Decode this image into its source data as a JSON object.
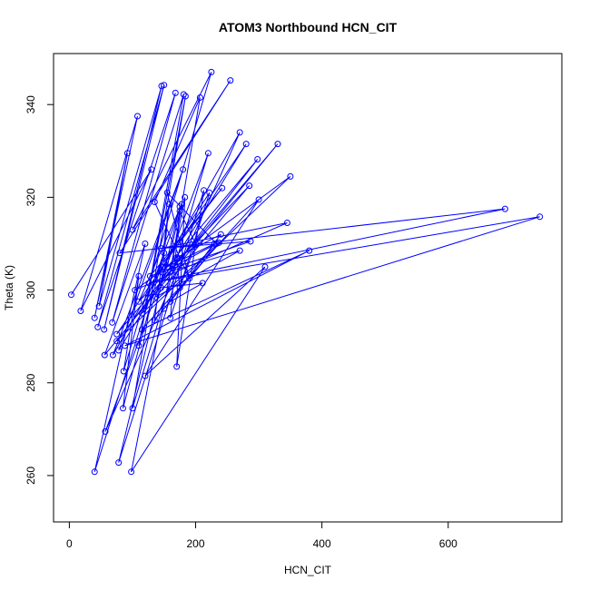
{
  "chart_data": {
    "type": "scatter",
    "mode": "lines+markers",
    "title": "ATOM3 Northbound HCN_CIT",
    "xlabel": "HCN_CIT",
    "ylabel": "Theta (K)",
    "xlim": [
      -25,
      780
    ],
    "ylim": [
      250,
      351
    ],
    "xticks": [
      0,
      200,
      400,
      600
    ],
    "yticks": [
      260,
      280,
      300,
      320,
      340
    ],
    "grid": false,
    "color": "#0000ff",
    "marker": "open-circle",
    "series": [
      {
        "points": [
          [
            3,
            299
          ],
          [
            130,
            326
          ],
          [
            18,
            295.5
          ],
          [
            108,
            337.5
          ],
          [
            40,
            294
          ],
          [
            92,
            329.5
          ],
          [
            47,
            296.5
          ],
          [
            146,
            344
          ],
          [
            55,
            291.5
          ],
          [
            150,
            344.2
          ],
          [
            45,
            292
          ],
          [
            168,
            342.5
          ],
          [
            68,
            293
          ],
          [
            181,
            342.2
          ],
          [
            110,
            288
          ],
          [
            184,
            341.8
          ],
          [
            100,
            274.5
          ],
          [
            220,
            329.5
          ],
          [
            57,
            269.5
          ],
          [
            270,
            334
          ],
          [
            69,
            286
          ],
          [
            180,
            326
          ],
          [
            78,
            287
          ],
          [
            280,
            331.5
          ],
          [
            75,
            290.5
          ],
          [
            330,
            331.5
          ],
          [
            56,
            286
          ],
          [
            120,
            310
          ],
          [
            40,
            260.8
          ],
          [
            150,
            308
          ],
          [
            85,
            274.5
          ],
          [
            110,
            303
          ],
          [
            86,
            282.5
          ],
          [
            225,
            347
          ],
          [
            100,
            313
          ],
          [
            255,
            345.2
          ],
          [
            80,
            308
          ],
          [
            690,
            317.5
          ],
          [
            126,
            301.5
          ],
          [
            745,
            315.8
          ],
          [
            88,
            288
          ],
          [
            380,
            308.5
          ],
          [
            115,
            291.5
          ],
          [
            300,
            319.5
          ],
          [
            120,
            281.5
          ],
          [
            310,
            305
          ],
          [
            98,
            260.8
          ],
          [
            183,
            320
          ],
          [
            170,
            283.5
          ],
          [
            213,
            321.5
          ],
          [
            78,
            262.8
          ],
          [
            175,
            318
          ],
          [
            160,
            294
          ],
          [
            222,
            321
          ],
          [
            150,
            306
          ],
          [
            242,
            322
          ],
          [
            128,
            303
          ],
          [
            287,
            310.5
          ],
          [
            145,
            309
          ],
          [
            345,
            314.5
          ],
          [
            104,
            300
          ],
          [
            350,
            324.5
          ],
          [
            75,
            289
          ],
          [
            298,
            328.2
          ],
          [
            148,
            303.8
          ],
          [
            233,
            310
          ],
          [
            155,
            321
          ],
          [
            190,
            302.5
          ],
          [
            135,
            319
          ],
          [
            207,
            341.5
          ],
          [
            160,
            304
          ],
          [
            270,
            308.5
          ],
          [
            137,
            298.5
          ],
          [
            285,
            322.5
          ],
          [
            110,
            297.5
          ],
          [
            178,
            318.5
          ],
          [
            115,
            295
          ],
          [
            237,
            310.2
          ],
          [
            135,
            293.5
          ],
          [
            158,
            318.5
          ],
          [
            145,
            300.5
          ],
          [
            211,
            301.5
          ],
          [
            160,
            297.5
          ],
          [
            240,
            312
          ],
          [
            170,
            307
          ],
          [
            175,
            300.5
          ],
          [
            200,
            310
          ],
          [
            175,
            317
          ],
          [
            155,
            305
          ],
          [
            230,
            310
          ],
          [
            150,
            296
          ]
        ]
      }
    ]
  }
}
